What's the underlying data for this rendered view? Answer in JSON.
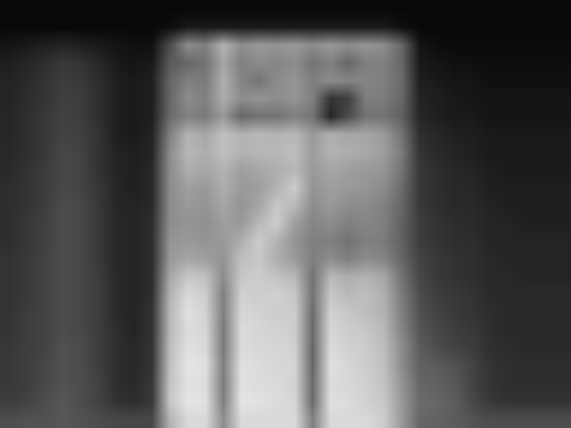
{
  "chart_data": {
    "type": "heatmap",
    "tick_labels": false,
    "grid": false,
    "zlim": [
      0,
      100
    ],
    "cells": [
      [
        3,
        3,
        3,
        3,
        3,
        3,
        3,
        3,
        3,
        3,
        3,
        3,
        3,
        3,
        3,
        3,
        3,
        3,
        3,
        3,
        3,
        3,
        3,
        3,
        3,
        3,
        3,
        3,
        3,
        3,
        3,
        3
      ],
      [
        3,
        3,
        3,
        3,
        3,
        3,
        3,
        3,
        3,
        5,
        10,
        10,
        10,
        10,
        10,
        10,
        10,
        10,
        10,
        10,
        10,
        10,
        6,
        3,
        3,
        3,
        3,
        3,
        3,
        3,
        3,
        3
      ],
      [
        8,
        10,
        12,
        14,
        12,
        10,
        8,
        6,
        6,
        30,
        55,
        50,
        70,
        55,
        60,
        58,
        60,
        55,
        60,
        55,
        58,
        55,
        40,
        8,
        5,
        4,
        4,
        4,
        4,
        4,
        4,
        4
      ],
      [
        12,
        15,
        18,
        22,
        20,
        16,
        10,
        8,
        10,
        35,
        40,
        45,
        65,
        50,
        55,
        52,
        55,
        45,
        50,
        40,
        50,
        50,
        40,
        10,
        8,
        6,
        6,
        5,
        5,
        5,
        5,
        5
      ],
      [
        14,
        16,
        20,
        24,
        22,
        18,
        12,
        10,
        12,
        40,
        50,
        48,
        68,
        52,
        45,
        55,
        58,
        50,
        55,
        52,
        52,
        50,
        42,
        12,
        10,
        8,
        8,
        6,
        6,
        6,
        6,
        6
      ],
      [
        14,
        18,
        20,
        25,
        24,
        18,
        12,
        10,
        12,
        40,
        55,
        50,
        68,
        55,
        58,
        55,
        58,
        50,
        20,
        25,
        50,
        48,
        40,
        14,
        12,
        10,
        8,
        8,
        8,
        8,
        8,
        8
      ],
      [
        15,
        18,
        22,
        26,
        24,
        18,
        12,
        10,
        12,
        42,
        50,
        48,
        60,
        40,
        45,
        45,
        50,
        45,
        15,
        30,
        45,
        45,
        38,
        15,
        12,
        10,
        10,
        8,
        8,
        8,
        8,
        8
      ],
      [
        15,
        18,
        22,
        26,
        25,
        20,
        12,
        10,
        14,
        50,
        70,
        65,
        75,
        70,
        72,
        70,
        72,
        60,
        68,
        65,
        65,
        60,
        45,
        18,
        15,
        12,
        12,
        10,
        10,
        10,
        10,
        10
      ],
      [
        16,
        18,
        22,
        28,
        26,
        20,
        14,
        12,
        14,
        55,
        72,
        68,
        75,
        70,
        72,
        72,
        74,
        62,
        70,
        68,
        66,
        62,
        48,
        20,
        16,
        14,
        12,
        10,
        10,
        10,
        10,
        10
      ],
      [
        16,
        20,
        24,
        28,
        26,
        20,
        14,
        12,
        16,
        55,
        68,
        65,
        70,
        62,
        65,
        68,
        72,
        60,
        65,
        62,
        60,
        58,
        45,
        22,
        18,
        15,
        14,
        12,
        10,
        10,
        10,
        10
      ],
      [
        18,
        20,
        24,
        28,
        26,
        22,
        15,
        12,
        16,
        55,
        62,
        60,
        68,
        60,
        62,
        70,
        80,
        58,
        62,
        60,
        58,
        55,
        42,
        22,
        18,
        16,
        15,
        12,
        12,
        12,
        12,
        12
      ],
      [
        18,
        20,
        24,
        30,
        28,
        22,
        15,
        14,
        16,
        55,
        60,
        58,
        65,
        58,
        65,
        78,
        72,
        55,
        60,
        55,
        55,
        50,
        40,
        22,
        18,
        16,
        16,
        14,
        12,
        12,
        12,
        12
      ],
      [
        18,
        22,
        25,
        30,
        28,
        22,
        16,
        14,
        18,
        55,
        58,
        56,
        62,
        60,
        72,
        80,
        62,
        52,
        55,
        50,
        52,
        50,
        38,
        24,
        20,
        18,
        16,
        14,
        14,
        12,
        12,
        12
      ],
      [
        18,
        22,
        25,
        30,
        28,
        22,
        16,
        14,
        18,
        58,
        60,
        58,
        60,
        68,
        80,
        70,
        58,
        50,
        50,
        45,
        50,
        48,
        38,
        24,
        20,
        18,
        18,
        14,
        14,
        14,
        14,
        14
      ],
      [
        20,
        22,
        26,
        30,
        28,
        22,
        16,
        14,
        18,
        60,
        65,
        62,
        58,
        75,
        78,
        68,
        60,
        50,
        55,
        50,
        55,
        52,
        40,
        26,
        22,
        20,
        18,
        16,
        14,
        14,
        14,
        14
      ],
      [
        20,
        22,
        26,
        30,
        28,
        24,
        16,
        14,
        18,
        65,
        78,
        75,
        55,
        78,
        80,
        76,
        72,
        45,
        72,
        68,
        70,
        65,
        45,
        28,
        22,
        20,
        18,
        16,
        16,
        14,
        14,
        14
      ],
      [
        20,
        22,
        26,
        30,
        28,
        24,
        16,
        14,
        18,
        70,
        85,
        80,
        50,
        82,
        80,
        82,
        78,
        45,
        78,
        72,
        75,
        68,
        48,
        30,
        24,
        22,
        20,
        16,
        16,
        16,
        16,
        16
      ],
      [
        20,
        24,
        26,
        30,
        28,
        24,
        16,
        14,
        20,
        72,
        88,
        82,
        50,
        84,
        82,
        80,
        80,
        42,
        82,
        78,
        74,
        70,
        50,
        32,
        26,
        22,
        20,
        18,
        16,
        16,
        16,
        16
      ],
      [
        20,
        24,
        26,
        30,
        28,
        24,
        18,
        14,
        20,
        72,
        86,
        84,
        48,
        86,
        84,
        82,
        80,
        42,
        84,
        80,
        78,
        72,
        52,
        34,
        28,
        24,
        22,
        18,
        16,
        16,
        16,
        16
      ],
      [
        22,
        24,
        26,
        32,
        30,
        24,
        18,
        16,
        20,
        74,
        88,
        85,
        48,
        86,
        84,
        84,
        82,
        40,
        86,
        82,
        80,
        74,
        55,
        36,
        30,
        26,
        24,
        18,
        18,
        16,
        16,
        16
      ],
      [
        22,
        24,
        28,
        32,
        30,
        24,
        18,
        16,
        20,
        75,
        90,
        88,
        50,
        88,
        86,
        84,
        84,
        40,
        88,
        84,
        80,
        75,
        55,
        38,
        36,
        32,
        26,
        20,
        18,
        18,
        18,
        18
      ],
      [
        22,
        24,
        28,
        32,
        30,
        26,
        18,
        16,
        22,
        76,
        88,
        86,
        48,
        88,
        86,
        86,
        82,
        42,
        86,
        84,
        82,
        76,
        58,
        40,
        38,
        34,
        26,
        20,
        18,
        18,
        18,
        18
      ],
      [
        24,
        26,
        30,
        34,
        30,
        26,
        20,
        18,
        22,
        78,
        90,
        88,
        50,
        90,
        88,
        86,
        84,
        42,
        88,
        86,
        82,
        78,
        60,
        42,
        40,
        36,
        28,
        22,
        20,
        20,
        20,
        20
      ],
      [
        30,
        32,
        32,
        34,
        32,
        30,
        28,
        28,
        28,
        70,
        85,
        85,
        55,
        85,
        85,
        85,
        85,
        50,
        85,
        85,
        85,
        80,
        60,
        40,
        38,
        36,
        32,
        30,
        30,
        30,
        30,
        30
      ]
    ]
  }
}
